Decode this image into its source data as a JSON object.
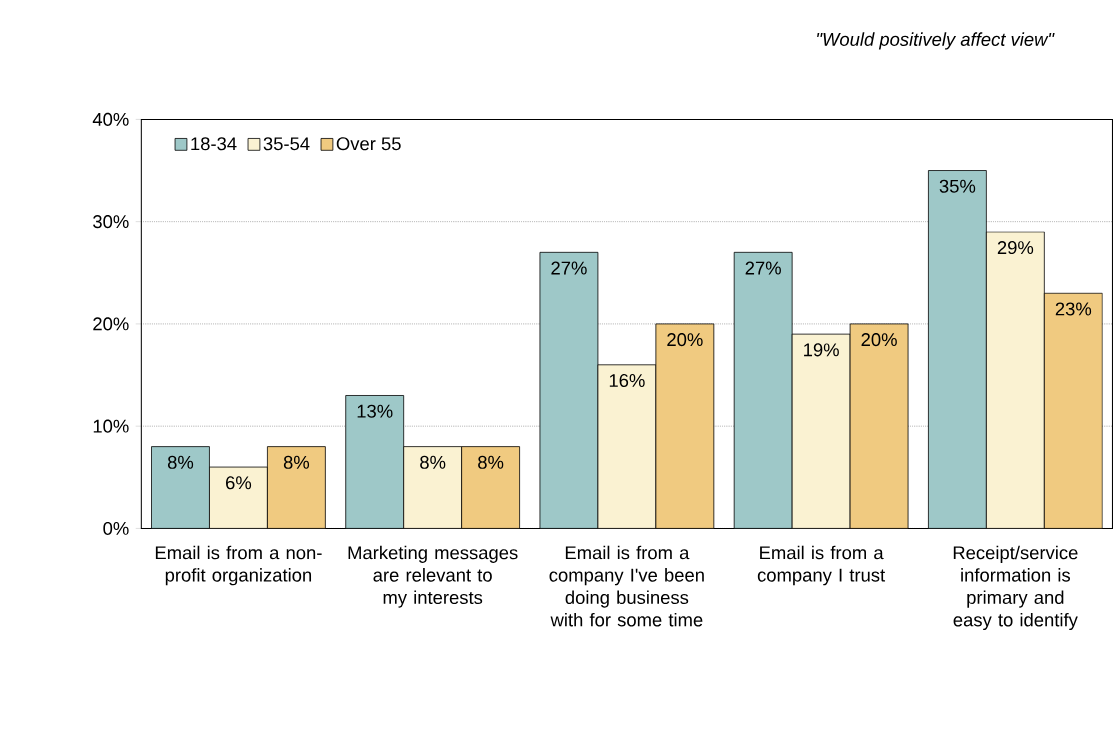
{
  "chart_data": {
    "type": "bar",
    "title": "\"Would positively affect view\"",
    "categories": [
      "Email is from a non-profit organization",
      "Marketing messages are relevant to my interests",
      "Email is from a company I've been doing business with for some time",
      "Email is from a company I trust",
      "Receipt/service information is primary and easy to identify"
    ],
    "series": [
      {
        "name": "18-34",
        "color": "#9ec8c8",
        "values": [
          8,
          13,
          27,
          27,
          35
        ],
        "value_labels": [
          "8%",
          "13%",
          "27%",
          "27%",
          "35%"
        ]
      },
      {
        "name": "35-54",
        "color": "#faf2d2",
        "values": [
          6,
          8,
          16,
          19,
          29
        ],
        "value_labels": [
          "6%",
          "8%",
          "16%",
          "19%",
          "29%"
        ]
      },
      {
        "name": "Over 55",
        "color": "#f0ca80",
        "values": [
          8,
          8,
          20,
          20,
          23
        ],
        "value_labels": [
          "8%",
          "8%",
          "20%",
          "20%",
          "23%"
        ]
      }
    ],
    "ylim": [
      0,
      40
    ],
    "yticks": [
      {
        "value": 0,
        "label": "0%"
      },
      {
        "value": 10,
        "label": "10%"
      },
      {
        "value": 20,
        "label": "20%"
      },
      {
        "value": 30,
        "label": "30%"
      },
      {
        "value": 40,
        "label": "40%"
      }
    ],
    "grid": "y",
    "legend": "top left"
  }
}
